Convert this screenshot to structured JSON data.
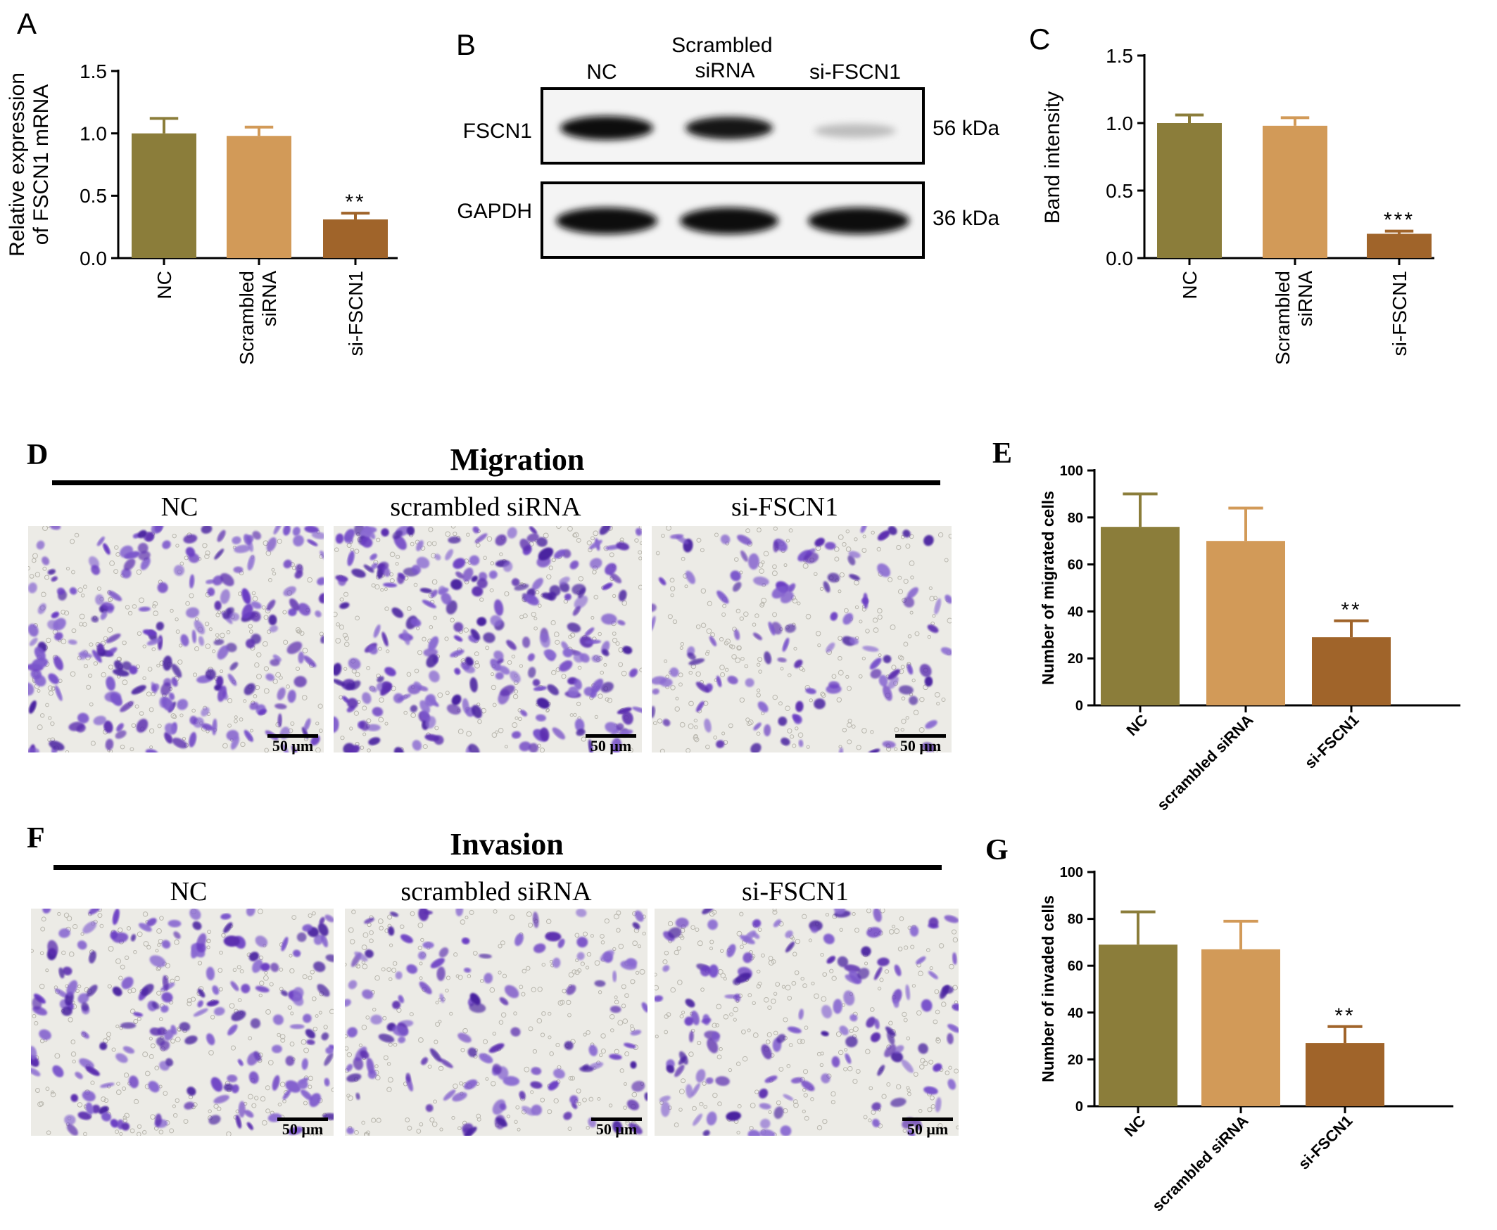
{
  "panels": {
    "A": {
      "letter": "A"
    },
    "B": {
      "letter": "B",
      "lanes": [
        "NC",
        "Scrambled\nsiRNA",
        "si-FSCN1"
      ],
      "rows": [
        {
          "protein": "FSCN1",
          "size": "56 kDa"
        },
        {
          "protein": "GAPDH",
          "size": "36 kDa"
        }
      ]
    },
    "C": {
      "letter": "C"
    },
    "D": {
      "letter": "D",
      "title": "Migration",
      "labels": [
        "NC",
        "scrambled siRNA",
        "si-FSCN1"
      ],
      "scale": "50 μm"
    },
    "E": {
      "letter": "E"
    },
    "F": {
      "letter": "F",
      "title": "Invasion",
      "labels": [
        "NC",
        "scrambled siRNA",
        "si-FSCN1"
      ],
      "scale": "50 μm"
    },
    "G": {
      "letter": "G"
    }
  },
  "colors": {
    "nc": "#8b7d3a",
    "scrambled": "#d29a58",
    "si": "#a0642a",
    "stain": "#5b2fb0",
    "axis": "#000000"
  },
  "chart_data": [
    {
      "panel": "A",
      "type": "bar",
      "categories": [
        "NC",
        "Scrambled\nsiRNA",
        "si-FSCN1"
      ],
      "values": [
        1.0,
        0.98,
        0.31
      ],
      "errors": [
        0.12,
        0.07,
        0.05
      ],
      "significance": [
        "",
        "",
        "**"
      ],
      "ylabel": "Relative expression\nof FSCN1 mRNA",
      "ylim": [
        0,
        1.5
      ],
      "yticks": [
        "0.0",
        "0.5",
        "1.0",
        "1.5"
      ]
    },
    {
      "panel": "C",
      "type": "bar",
      "categories": [
        "NC",
        "Scrambled\nsiRNA",
        "si-FSCN1"
      ],
      "values": [
        1.0,
        0.98,
        0.18
      ],
      "errors": [
        0.06,
        0.06,
        0.02
      ],
      "significance": [
        "",
        "",
        "***"
      ],
      "ylabel": "Band intensity",
      "ylim": [
        0,
        1.5
      ],
      "yticks": [
        "0.0",
        "0.5",
        "1.0",
        "1.5"
      ]
    },
    {
      "panel": "E",
      "type": "bar",
      "categories": [
        "NC",
        "scrambled siRNA",
        "si-FSCN1"
      ],
      "values": [
        76,
        70,
        29
      ],
      "errors": [
        14,
        14,
        7
      ],
      "significance": [
        "",
        "",
        "**"
      ],
      "ylabel": "Number of migrated cells",
      "ylim": [
        0,
        100
      ],
      "yticks": [
        "0",
        "20",
        "40",
        "60",
        "80",
        "100"
      ]
    },
    {
      "panel": "G",
      "type": "bar",
      "categories": [
        "NC",
        "scrambled siRNA",
        "si-FSCN1"
      ],
      "values": [
        69,
        67,
        27
      ],
      "errors": [
        14,
        12,
        7
      ],
      "significance": [
        "",
        "",
        "**"
      ],
      "ylabel": "Number of invaded cells",
      "ylim": [
        0,
        100
      ],
      "yticks": [
        "0",
        "20",
        "40",
        "60",
        "80",
        "100"
      ]
    }
  ]
}
